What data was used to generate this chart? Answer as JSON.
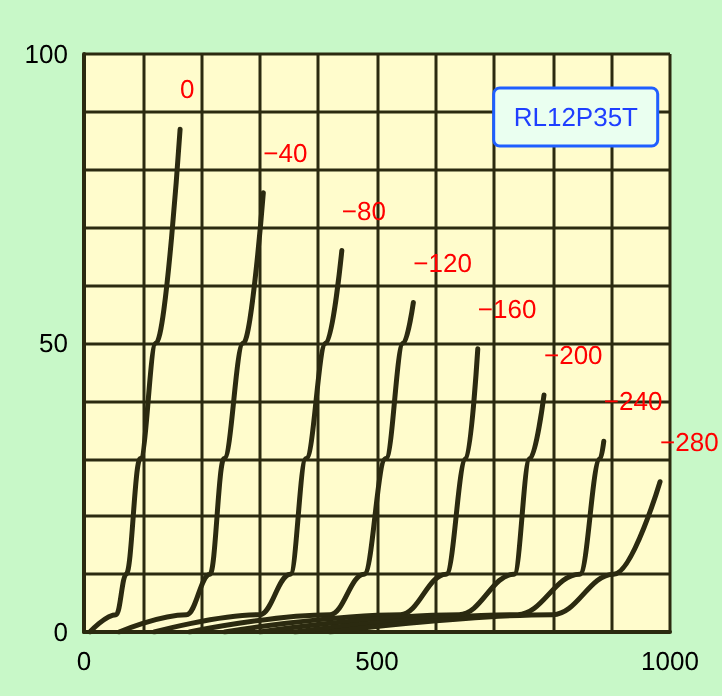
{
  "chart_data": {
    "type": "line",
    "title": "RL12P35T",
    "xlim": [
      0,
      1000
    ],
    "ylim": [
      0,
      100
    ],
    "xticks": [
      0,
      {
        "value": 100,
        "label": null
      },
      {
        "value": 200,
        "label": null
      },
      {
        "value": 300,
        "label": null
      },
      {
        "value": 400,
        "label": null
      },
      500,
      {
        "value": 600,
        "label": null
      },
      {
        "value": 700,
        "label": null
      },
      {
        "value": 800,
        "label": null
      },
      {
        "value": 900,
        "label": null
      },
      1000
    ],
    "yticks": [
      0,
      {
        "value": 10,
        "label": null
      },
      {
        "value": 20,
        "label": null
      },
      {
        "value": 30,
        "label": null
      },
      {
        "value": 40,
        "label": null
      },
      50,
      {
        "value": 60,
        "label": null
      },
      {
        "value": 70,
        "label": null
      },
      {
        "value": 80,
        "label": null
      },
      {
        "value": 90,
        "label": null
      },
      100
    ],
    "grid": true,
    "marker": "none",
    "line_style": "solid",
    "series": [
      {
        "name": "0",
        "color": "#2b2a10",
        "x": [
          10,
          55,
          72,
          96,
          123,
          164
        ],
        "values": [
          0,
          3,
          10,
          30,
          50,
          87
        ]
      },
      {
        "name": "−40",
        "color": "#2b2a10",
        "x": [
          60,
          175,
          215,
          239,
          272,
          306
        ],
        "values": [
          0,
          3,
          10,
          30,
          50,
          76
        ]
      },
      {
        "name": "−80",
        "color": "#2b2a10",
        "x": [
          120,
          300,
          352,
          379,
          413,
          440
        ],
        "values": [
          0,
          3,
          10,
          30,
          50,
          66
        ]
      },
      {
        "name": "−120",
        "color": "#2b2a10",
        "x": [
          180,
          420,
          478,
          515,
          545,
          562
        ],
        "values": [
          0,
          3,
          10,
          30,
          50,
          57
        ]
      },
      {
        "name": "−160",
        "color": "#2b2a10",
        "x": [
          240,
          540,
          618,
          652,
          672
        ],
        "values": [
          0,
          3,
          10,
          30,
          49
        ]
      },
      {
        "name": "−200",
        "color": "#2b2a10",
        "x": [
          300,
          640,
          734,
          761,
          785
        ],
        "values": [
          0,
          3,
          10,
          30,
          41
        ]
      },
      {
        "name": "−240",
        "color": "#2b2a10",
        "x": [
          360,
          740,
          846,
          881,
          887
        ],
        "values": [
          0,
          3,
          10,
          30,
          33
        ]
      },
      {
        "name": "−280",
        "color": "#2b2a10",
        "x": [
          420,
          800,
          904,
          983
        ],
        "values": [
          0,
          3,
          10,
          26
        ]
      }
    ]
  }
}
